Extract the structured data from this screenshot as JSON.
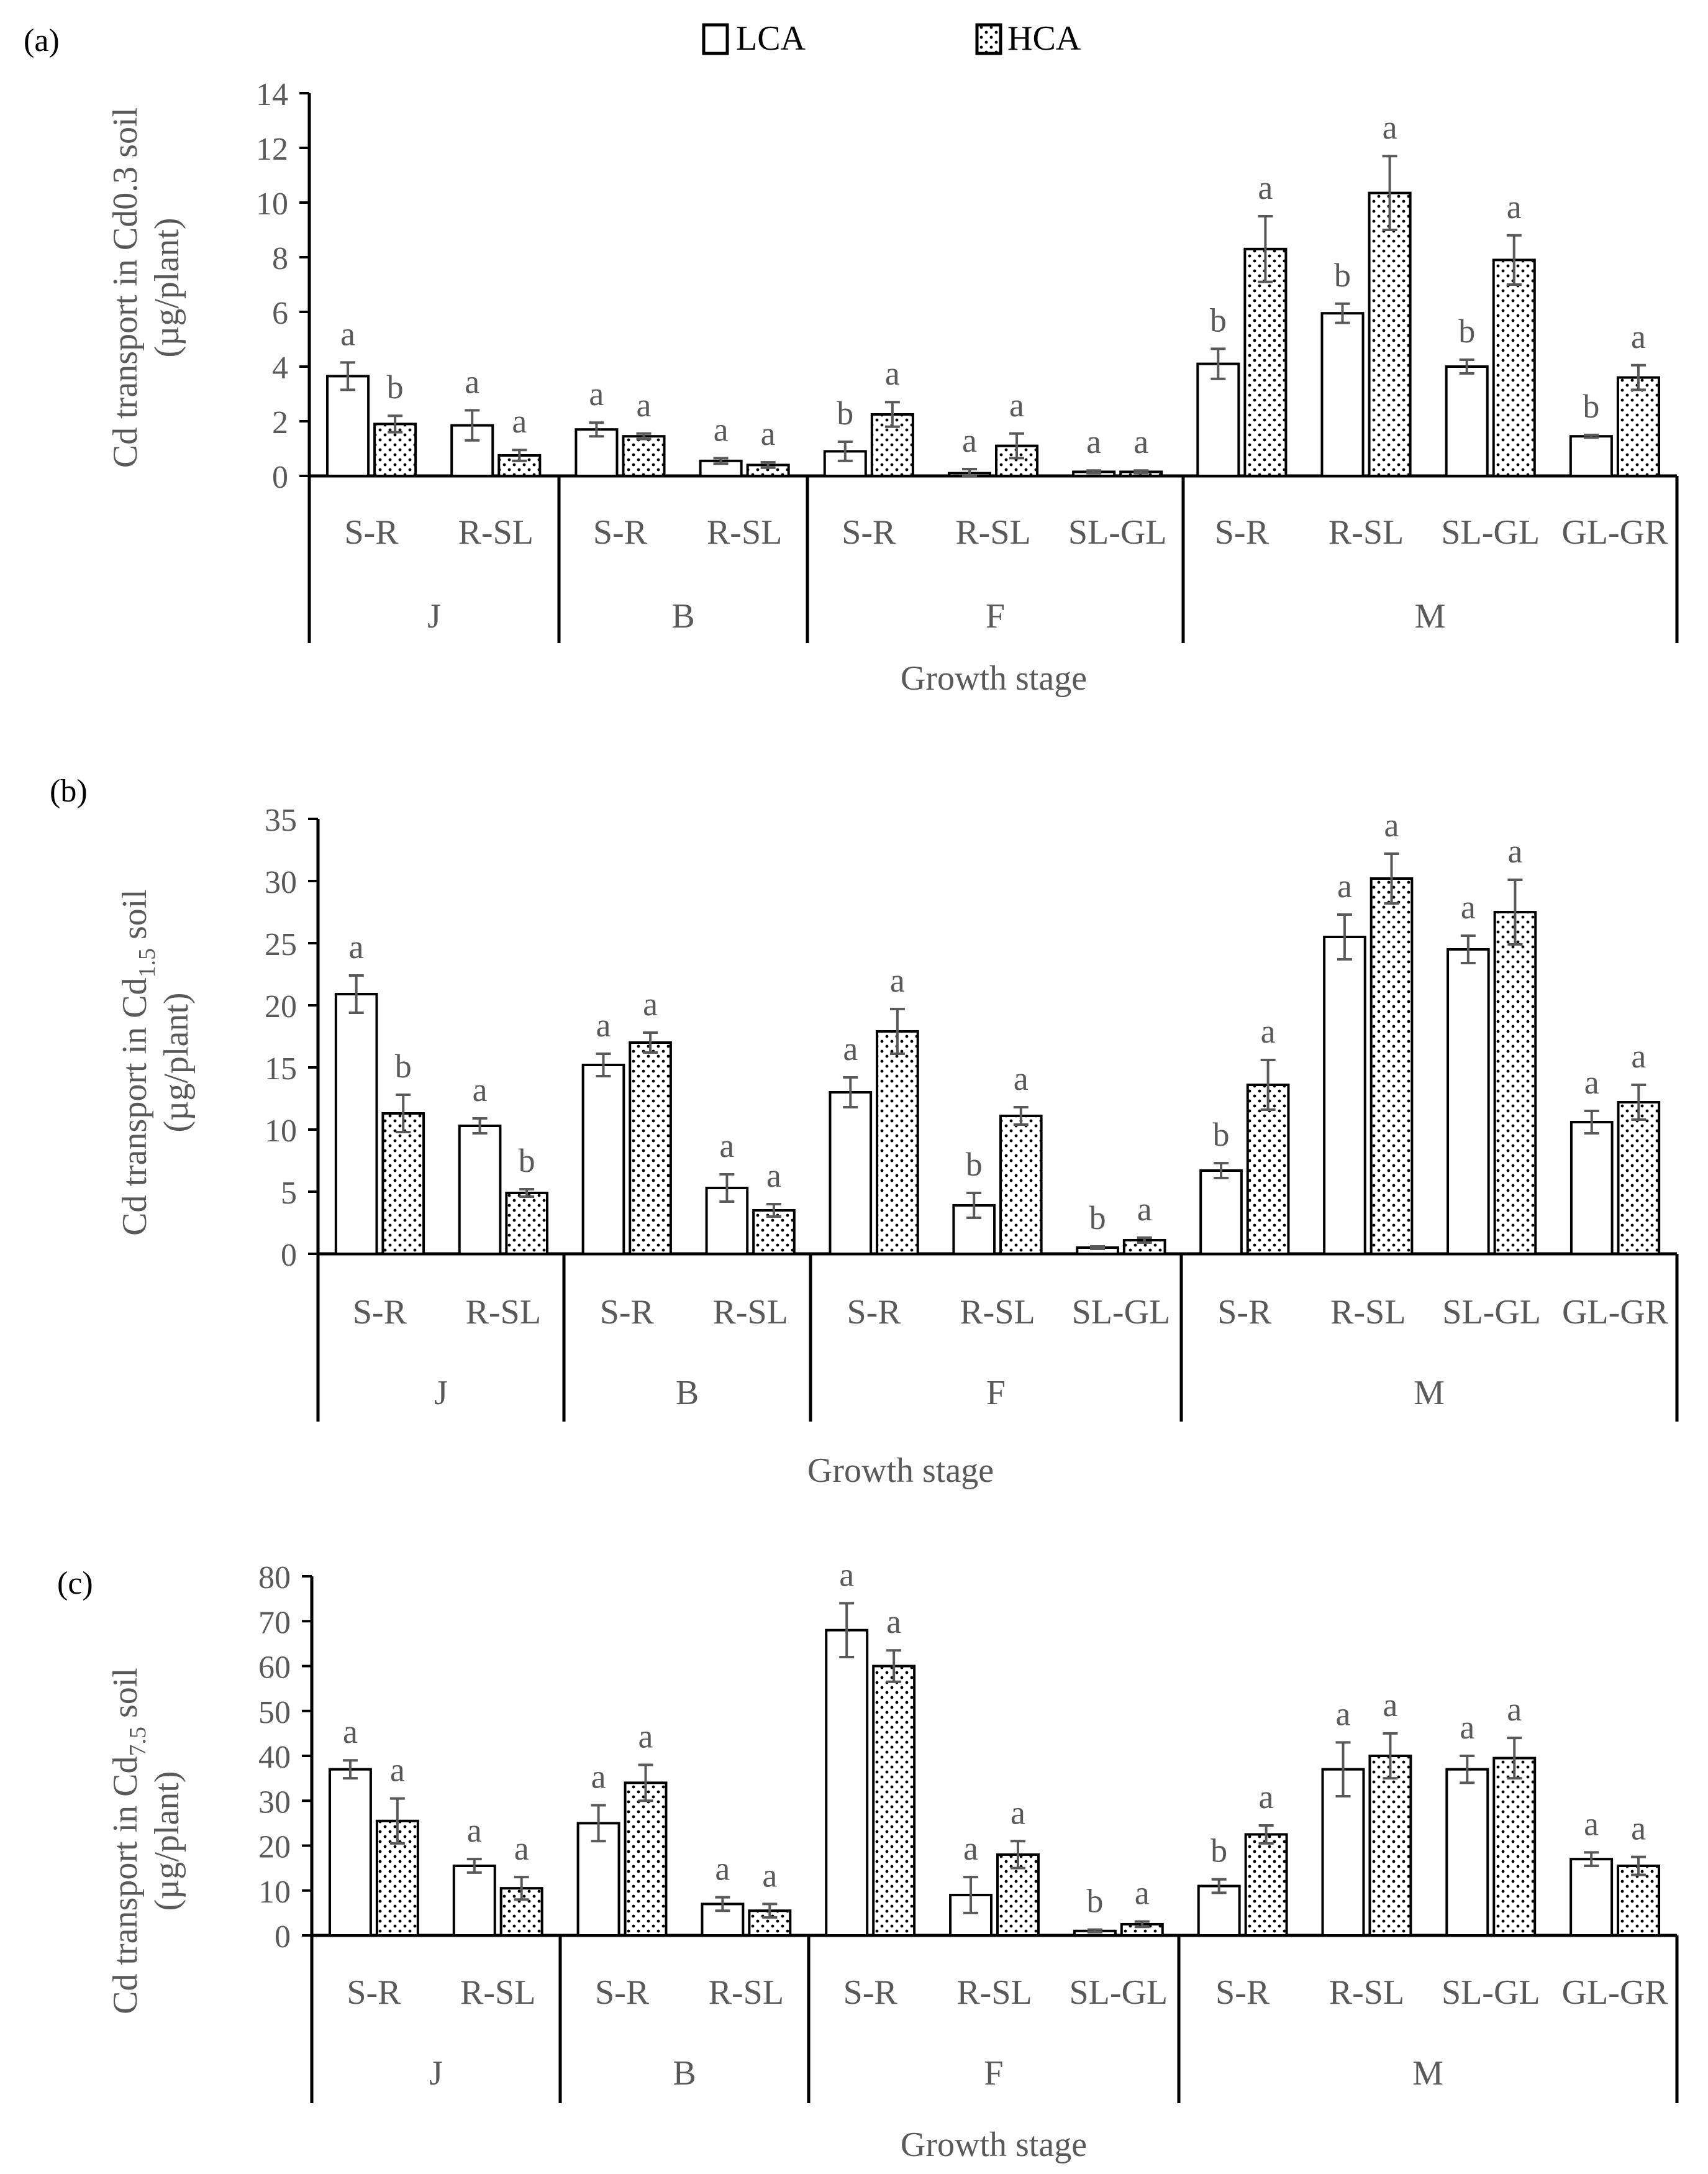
{
  "legend": {
    "series": [
      {
        "name": "LCA",
        "pattern": "open"
      },
      {
        "name": "HCA",
        "pattern": "dotted"
      }
    ]
  },
  "colors": {
    "axis": "#000000",
    "bar_edge": "#000000",
    "text": "#595959",
    "error_bar": "#595959"
  },
  "chart_data": [
    {
      "id": "a",
      "type": "bar",
      "panel_label": "(a)",
      "ylabel_lines": [
        "Cd transport in Cd0.3 soil",
        "(µg/plant)"
      ],
      "xlabel": "Growth stage",
      "ylim": [
        0,
        14
      ],
      "yticks": [
        0,
        2,
        4,
        6,
        8,
        10,
        12,
        14
      ],
      "groups": [
        {
          "stage": "J",
          "categories": [
            "S-R",
            "R-SL"
          ]
        },
        {
          "stage": "B",
          "categories": [
            "S-R",
            "R-SL"
          ]
        },
        {
          "stage": "F",
          "categories": [
            "S-R",
            "R-SL",
            "SL-GL"
          ]
        },
        {
          "stage": "M",
          "categories": [
            "S-R",
            "R-SL",
            "SL-GL",
            "GL-GR"
          ]
        }
      ],
      "series": [
        {
          "name": "LCA",
          "values": [
            3.65,
            1.85,
            1.7,
            0.55,
            0.9,
            0.1,
            0.15,
            4.1,
            5.95,
            4.0,
            1.45
          ],
          "errors": [
            0.5,
            0.55,
            0.25,
            0.1,
            0.35,
            0.15,
            0.05,
            0.55,
            0.35,
            0.25,
            0.05
          ],
          "letters": [
            "a",
            "a",
            "a",
            "a",
            "b",
            "a",
            "a",
            "b",
            "b",
            "b",
            "b"
          ]
        },
        {
          "name": "HCA",
          "values": [
            1.9,
            0.75,
            1.45,
            0.4,
            2.25,
            1.1,
            0.15,
            8.3,
            10.35,
            7.9,
            3.6
          ],
          "errors": [
            0.3,
            0.2,
            0.1,
            0.1,
            0.45,
            0.45,
            0.05,
            1.2,
            1.35,
            0.9,
            0.45
          ],
          "letters": [
            "b",
            "a",
            "a",
            "a",
            "a",
            "a",
            "a",
            "a",
            "a",
            "a",
            "a"
          ]
        }
      ]
    },
    {
      "id": "b",
      "type": "bar",
      "panel_label": "(b)",
      "ylabel_lines": [
        "Cd transport in Cd",
        "1.5",
        " soil",
        "(µg/plant)"
      ],
      "xlabel": "Growth stage",
      "ylim": [
        0,
        35
      ],
      "yticks": [
        0,
        5,
        10,
        15,
        20,
        25,
        30,
        35
      ],
      "groups": [
        {
          "stage": "J",
          "categories": [
            "S-R",
            "R-SL"
          ]
        },
        {
          "stage": "B",
          "categories": [
            "S-R",
            "R-SL"
          ]
        },
        {
          "stage": "F",
          "categories": [
            "S-R",
            "R-SL",
            "SL-GL"
          ]
        },
        {
          "stage": "M",
          "categories": [
            "S-R",
            "R-SL",
            "SL-GL",
            "GL-GR"
          ]
        }
      ],
      "series": [
        {
          "name": "LCA",
          "values": [
            20.9,
            10.3,
            15.2,
            5.3,
            13.0,
            3.9,
            0.5,
            6.7,
            25.5,
            24.5,
            10.6
          ],
          "errors": [
            1.5,
            0.6,
            0.9,
            1.1,
            1.2,
            1.0,
            0.1,
            0.6,
            1.8,
            1.1,
            0.9
          ],
          "letters": [
            "a",
            "a",
            "a",
            "a",
            "a",
            "b",
            "b",
            "b",
            "a",
            "a",
            "a"
          ]
        },
        {
          "name": "HCA",
          "values": [
            11.3,
            4.9,
            17.0,
            3.5,
            17.9,
            11.1,
            1.1,
            13.6,
            30.2,
            27.5,
            12.2
          ],
          "errors": [
            1.5,
            0.3,
            0.8,
            0.5,
            1.8,
            0.7,
            0.2,
            2.0,
            2.0,
            2.6,
            1.4
          ],
          "letters": [
            "b",
            "b",
            "a",
            "a",
            "a",
            "a",
            "a",
            "a",
            "a",
            "a",
            "a"
          ]
        }
      ]
    },
    {
      "id": "c",
      "type": "bar",
      "panel_label": "(c)",
      "ylabel_lines": [
        "Cd transport in Cd",
        "7.5",
        " soil",
        "(µg/plant)"
      ],
      "xlabel": "Growth stage",
      "ylim": [
        0,
        80
      ],
      "yticks": [
        0,
        10,
        20,
        30,
        40,
        50,
        60,
        70,
        80
      ],
      "groups": [
        {
          "stage": "J",
          "categories": [
            "S-R",
            "R-SL"
          ]
        },
        {
          "stage": "B",
          "categories": [
            "S-R",
            "R-SL"
          ]
        },
        {
          "stage": "F",
          "categories": [
            "S-R",
            "R-SL",
            "SL-GL"
          ]
        },
        {
          "stage": "M",
          "categories": [
            "S-R",
            "R-SL",
            "SL-GL",
            "GL-GR"
          ]
        }
      ],
      "series": [
        {
          "name": "LCA",
          "values": [
            37.0,
            15.5,
            25.0,
            7.0,
            68.0,
            9.0,
            1.0,
            11.0,
            37.0,
            37.0,
            17.0
          ],
          "errors": [
            2.0,
            1.5,
            4.0,
            1.5,
            6.0,
            4.0,
            0.3,
            1.5,
            6.0,
            3.0,
            1.5
          ],
          "letters": [
            "a",
            "a",
            "a",
            "a",
            "a",
            "a",
            "b",
            "b",
            "a",
            "a",
            "a"
          ]
        },
        {
          "name": "HCA",
          "values": [
            25.5,
            10.5,
            34.0,
            5.5,
            60.0,
            18.0,
            2.5,
            22.5,
            40.0,
            39.5,
            15.5
          ],
          "errors": [
            5.0,
            2.5,
            4.0,
            1.5,
            3.5,
            3.0,
            0.6,
            2.0,
            5.0,
            4.5,
            2.0
          ],
          "letters": [
            "a",
            "a",
            "a",
            "a",
            "a",
            "a",
            "a",
            "a",
            "a",
            "a",
            "a"
          ]
        }
      ]
    }
  ]
}
